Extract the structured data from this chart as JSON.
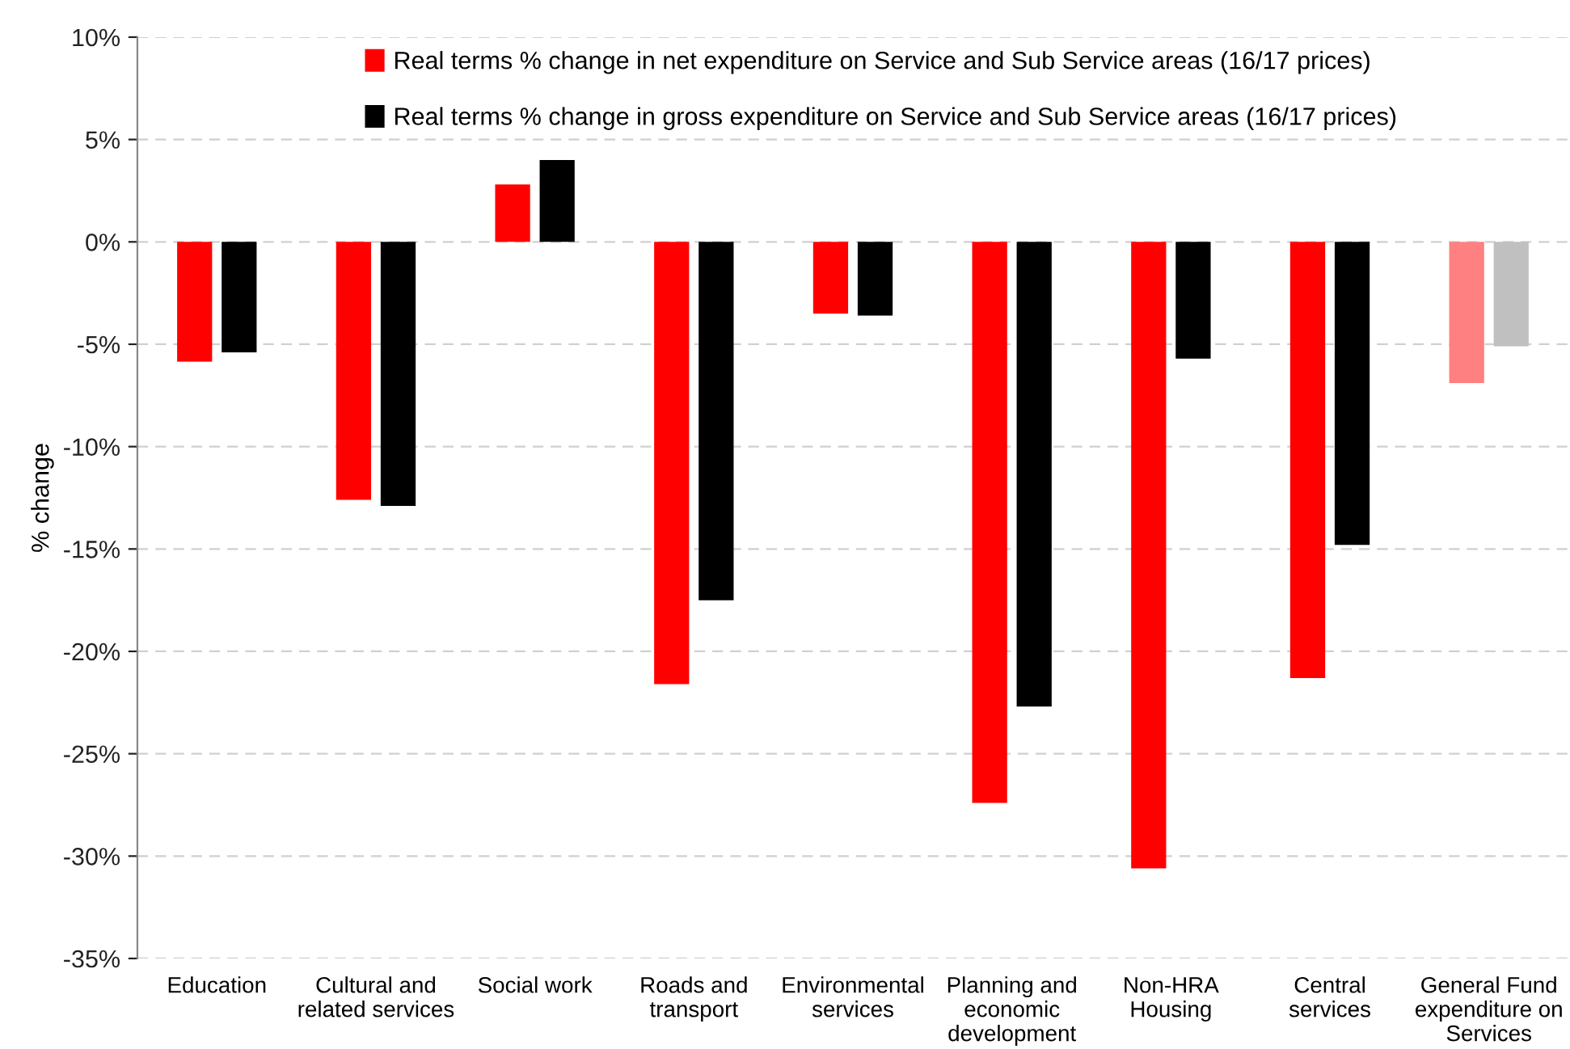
{
  "chart_data": {
    "type": "bar",
    "ylabel": "% change",
    "categories": [
      "Education",
      "Cultural and\nrelated services",
      "Social work",
      "Roads and\ntransport",
      "Environmental\nservices",
      "Planning and\neconomic\ndevelopment",
      "Non-HRA\nHousing",
      "Central\nservices",
      "General Fund\nexpenditure on\nServices"
    ],
    "series": [
      {
        "name": "Real terms % change in net expenditure on Service and Sub Service areas (16/17 prices)",
        "color": "#ff0000",
        "colors": [
          "#ff0000",
          "#ff0000",
          "#ff0000",
          "#ff0000",
          "#ff0000",
          "#ff0000",
          "#ff0000",
          "#ff0000",
          "#ff8080"
        ],
        "values": [
          -5.85,
          -12.6,
          2.8,
          -21.6,
          -3.5,
          -27.4,
          -30.6,
          -21.3,
          -6.9
        ]
      },
      {
        "name": "Real terms % change in gross expenditure on Service and Sub Service areas (16/17 prices)",
        "color": "#000000",
        "colors": [
          "#000000",
          "#000000",
          "#000000",
          "#000000",
          "#000000",
          "#000000",
          "#000000",
          "#000000",
          "#c0c0c0"
        ],
        "values": [
          -5.4,
          -12.9,
          4.0,
          -17.5,
          -3.6,
          -22.7,
          -5.7,
          -14.8,
          -5.1
        ]
      }
    ],
    "ylim": [
      -35,
      10
    ],
    "yticks": [
      {
        "value": -35,
        "label": "-35%"
      },
      {
        "value": -30,
        "label": "-30%"
      },
      {
        "value": -25,
        "label": "-25%"
      },
      {
        "value": -20,
        "label": "-20%"
      },
      {
        "value": -15,
        "label": "-15%"
      },
      {
        "value": -10,
        "label": "-10%"
      },
      {
        "value": -5,
        "label": "-5%"
      },
      {
        "value": 0,
        "label": "0%"
      },
      {
        "value": 5,
        "label": "5%"
      },
      {
        "value": 10,
        "label": "10%"
      }
    ],
    "grid": "y",
    "legend": "top"
  }
}
